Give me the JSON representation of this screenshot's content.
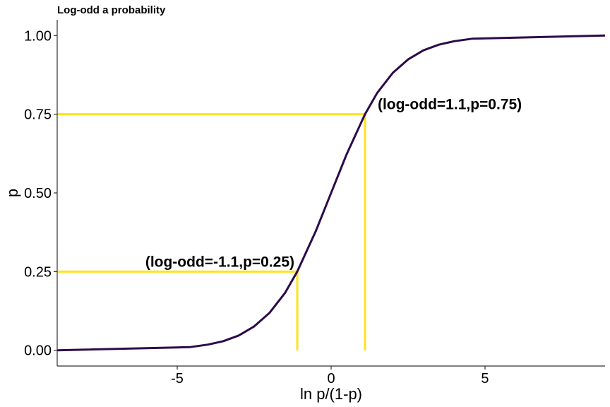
{
  "chart_data": {
    "type": "line",
    "title": "Log-odd a probability",
    "xlabel": "ln p/(1-p)",
    "ylabel": "p",
    "xlim": [
      -8.9,
      8.9
    ],
    "ylim": [
      -0.05,
      1.05
    ],
    "x_ticks": [
      -5,
      0,
      5
    ],
    "x_tick_labels": [
      "-5",
      "0",
      "5"
    ],
    "y_ticks": [
      0.0,
      0.25,
      0.5,
      0.75,
      1.0
    ],
    "y_tick_labels": [
      "0.00",
      "0.25",
      "0.50",
      "0.75",
      "1.00"
    ],
    "grid": false,
    "series": [
      {
        "x": [
          -8.9,
          -4.6,
          -4.0,
          -3.5,
          -3.0,
          -2.5,
          -2.0,
          -1.5,
          -1.1,
          -0.5,
          0.0,
          0.5,
          1.1,
          1.5,
          2.0,
          2.5,
          3.0,
          3.5,
          4.0,
          4.6,
          8.9
        ],
        "y": [
          0.0,
          0.01,
          0.018,
          0.029,
          0.047,
          0.076,
          0.119,
          0.182,
          0.25,
          0.378,
          0.5,
          0.622,
          0.75,
          0.818,
          0.881,
          0.924,
          0.953,
          0.971,
          0.982,
          0.99,
          1.0
        ],
        "color": "#2d0a4a"
      }
    ],
    "reference_lines": [
      {
        "x": -1.1,
        "y": 0.25,
        "color": "#ffe31a"
      },
      {
        "x": 1.1,
        "y": 0.75,
        "color": "#ffe31a"
      }
    ],
    "annotations": [
      {
        "text": "(log-odd=-1.1,p=0.25)",
        "x": -1.1,
        "y": 0.25
      },
      {
        "text": "(log-odd=1.1,p=0.75)",
        "x": 1.1,
        "y": 0.75
      }
    ]
  }
}
